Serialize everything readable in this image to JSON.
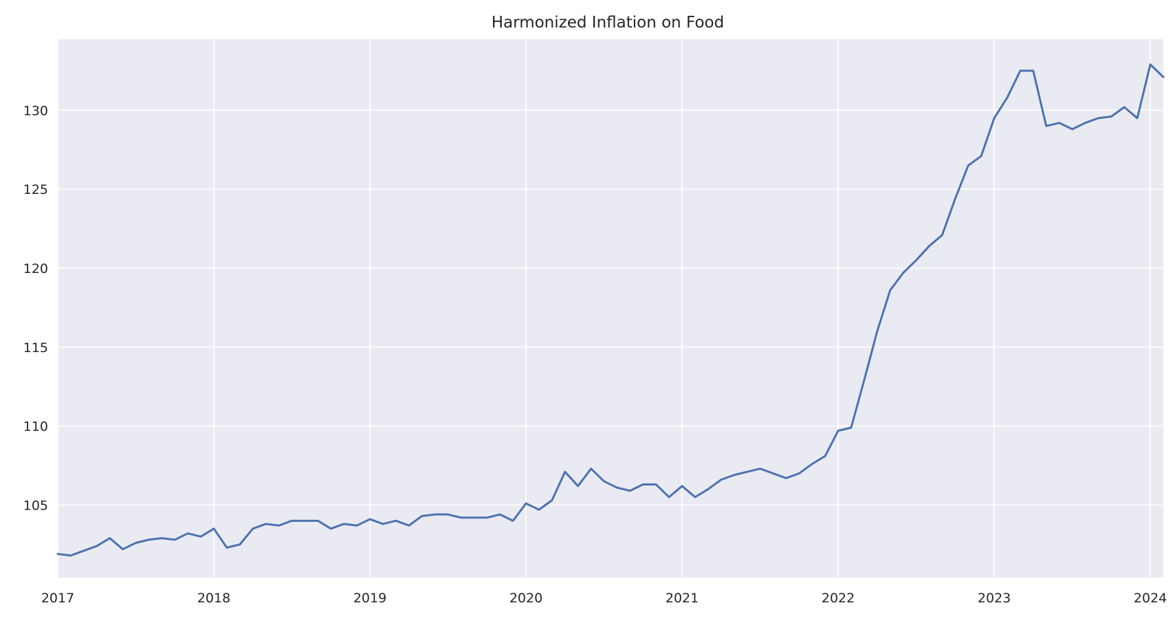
{
  "chart_data": {
    "type": "line",
    "title": "Harmonized Inflation on Food",
    "xlabel": "",
    "ylabel": "",
    "x_ticks": [
      "2017",
      "2018",
      "2019",
      "2020",
      "2021",
      "2022",
      "2023",
      "2024"
    ],
    "y_ticks": [
      105,
      110,
      115,
      120,
      125,
      130
    ],
    "xlim": [
      "2017-01",
      "2024-02"
    ],
    "ylim": [
      100.4,
      134.5
    ],
    "grid": true,
    "legend": "none",
    "colors": {
      "plot_background": "#eaeaf2",
      "grid": "#ffffff",
      "line": "#4c72b0"
    },
    "series": [
      {
        "x": [
          "2017-01",
          "2017-02",
          "2017-03",
          "2017-04",
          "2017-05",
          "2017-06",
          "2017-07",
          "2017-08",
          "2017-09",
          "2017-10",
          "2017-11",
          "2017-12",
          "2018-01",
          "2018-02",
          "2018-03",
          "2018-04",
          "2018-05",
          "2018-06",
          "2018-07",
          "2018-08",
          "2018-09",
          "2018-10",
          "2018-11",
          "2018-12",
          "2019-01",
          "2019-02",
          "2019-03",
          "2019-04",
          "2019-05",
          "2019-06",
          "2019-07",
          "2019-08",
          "2019-09",
          "2019-10",
          "2019-11",
          "2019-12",
          "2020-01",
          "2020-02",
          "2020-03",
          "2020-04",
          "2020-05",
          "2020-06",
          "2020-07",
          "2020-08",
          "2020-09",
          "2020-10",
          "2020-11",
          "2020-12",
          "2021-01",
          "2021-02",
          "2021-03",
          "2021-04",
          "2021-05",
          "2021-06",
          "2021-07",
          "2021-08",
          "2021-09",
          "2021-10",
          "2021-11",
          "2021-12",
          "2022-01",
          "2022-02",
          "2022-03",
          "2022-04",
          "2022-05",
          "2022-06",
          "2022-07",
          "2022-08",
          "2022-09",
          "2022-10",
          "2022-11",
          "2022-12",
          "2023-01",
          "2023-02",
          "2023-03",
          "2023-04",
          "2023-05",
          "2023-06",
          "2023-07",
          "2023-08",
          "2023-09",
          "2023-10",
          "2023-11",
          "2023-12",
          "2024-01",
          "2024-02"
        ],
        "values": [
          101.9,
          101.8,
          102.1,
          102.4,
          102.9,
          102.2,
          102.6,
          102.8,
          102.9,
          102.8,
          103.2,
          103.0,
          103.5,
          102.3,
          102.5,
          103.5,
          103.8,
          103.7,
          104.0,
          104.0,
          104.0,
          103.5,
          103.8,
          103.7,
          104.1,
          103.8,
          104.0,
          103.7,
          104.3,
          104.4,
          104.4,
          104.2,
          104.2,
          104.2,
          104.4,
          104.0,
          105.1,
          104.7,
          105.3,
          107.1,
          106.2,
          107.3,
          106.5,
          106.1,
          105.9,
          106.3,
          106.3,
          105.5,
          106.2,
          105.5,
          106.0,
          106.6,
          106.9,
          107.1,
          107.3,
          107.0,
          106.7,
          107.0,
          107.6,
          108.1,
          109.7,
          109.9,
          112.9,
          116.0,
          118.6,
          119.7,
          120.5,
          121.4,
          122.1,
          124.4,
          126.5,
          127.1,
          129.5,
          130.8,
          132.5,
          132.5,
          129.0,
          129.2,
          128.8,
          129.2,
          129.5,
          129.6,
          130.2,
          129.5,
          132.9,
          132.1
        ]
      }
    ]
  }
}
